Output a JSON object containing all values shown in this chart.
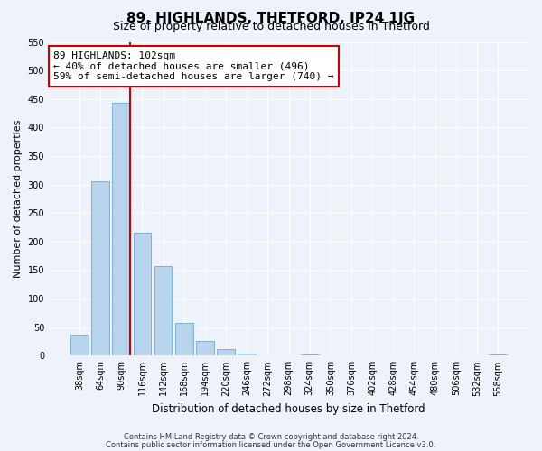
{
  "title": "89, HIGHLANDS, THETFORD, IP24 1JG",
  "subtitle": "Size of property relative to detached houses in Thetford",
  "xlabel": "Distribution of detached houses by size in Thetford",
  "ylabel": "Number of detached properties",
  "bar_labels": [
    "38sqm",
    "64sqm",
    "90sqm",
    "116sqm",
    "142sqm",
    "168sqm",
    "194sqm",
    "220sqm",
    "246sqm",
    "272sqm",
    "298sqm",
    "324sqm",
    "350sqm",
    "376sqm",
    "402sqm",
    "428sqm",
    "454sqm",
    "480sqm",
    "506sqm",
    "532sqm",
    "558sqm"
  ],
  "bar_values": [
    37,
    305,
    443,
    215,
    157,
    57,
    26,
    12,
    3,
    0,
    0,
    2,
    1,
    0,
    0,
    0,
    0,
    0,
    0,
    0,
    2
  ],
  "bar_color": "#b8d4ec",
  "bar_edge_color": "#6aaad4",
  "vline_color": "#cc0000",
  "annotation_text": "89 HIGHLANDS: 102sqm\n← 40% of detached houses are smaller (496)\n59% of semi-detached houses are larger (740) →",
  "annotation_box_facecolor": "#ffffff",
  "annotation_box_edgecolor": "#cc0000",
  "ylim": [
    0,
    550
  ],
  "yticks": [
    0,
    50,
    100,
    150,
    200,
    250,
    300,
    350,
    400,
    450,
    500,
    550
  ],
  "footer_line1": "Contains HM Land Registry data © Crown copyright and database right 2024.",
  "footer_line2": "Contains public sector information licensed under the Open Government Licence v3.0.",
  "bg_color": "#eef2fb",
  "plot_bg_color": "#eef2fb",
  "grid_color": "#ffffff",
  "title_fontsize": 11,
  "subtitle_fontsize": 9,
  "ylabel_fontsize": 8,
  "xlabel_fontsize": 8.5,
  "tick_fontsize": 7,
  "annotation_fontsize": 8,
  "footer_fontsize": 6
}
